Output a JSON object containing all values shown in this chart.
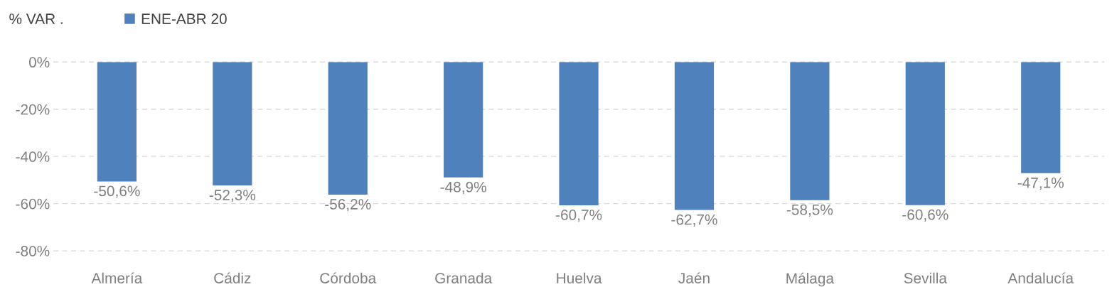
{
  "chart_data": {
    "type": "bar",
    "ylabel": "% VAR .",
    "categories": [
      "Almería",
      "Cádiz",
      "Córdoba",
      "Granada",
      "Huelva",
      "Jaén",
      "Málaga",
      "Sevilla",
      "Andalucía"
    ],
    "series": [
      {
        "name": "ENE-ABR 20",
        "color": "#4f81bd",
        "values": [
          -50.6,
          -52.3,
          -56.2,
          -48.9,
          -60.7,
          -62.7,
          -58.5,
          -60.6,
          -47.1
        ],
        "value_labels": [
          "-50,6%",
          "-52,3%",
          "-56,2%",
          "-48,9%",
          "-60,7%",
          "-62,7%",
          "-58,5%",
          "-60,6%",
          "-47,1%"
        ]
      }
    ],
    "ylim": [
      -80,
      0
    ],
    "yticks": [
      {
        "value": 0,
        "label": "0%"
      },
      {
        "value": -20,
        "label": "-20%"
      },
      {
        "value": -40,
        "label": "-40%"
      },
      {
        "value": -60,
        "label": "-60%"
      },
      {
        "value": -80,
        "label": "-80%"
      }
    ],
    "grid": "y",
    "legend": "top left"
  }
}
